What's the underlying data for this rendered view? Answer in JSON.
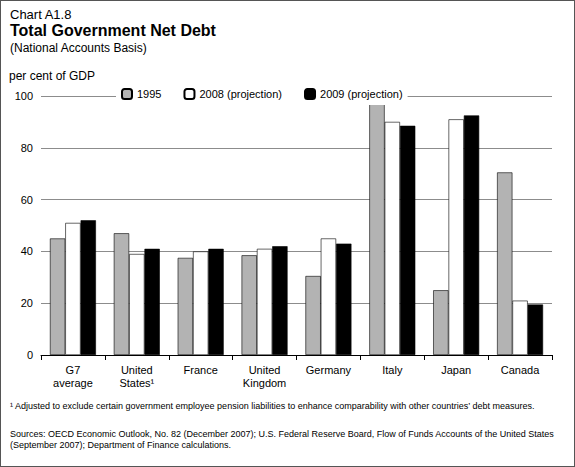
{
  "chart_data": {
    "type": "bar",
    "title": "Total Government Net Debt",
    "chart_number": "Chart A1.8",
    "subtitle": "(National Accounts Basis)",
    "y_label": "per cent of GDP",
    "categories": [
      "G7\naverage",
      "United\nStates¹",
      "France",
      "United\nKingdom",
      "Germany",
      "Italy",
      "Japan",
      "Canada"
    ],
    "series": [
      {
        "name": "1995",
        "color": "#b3b3b3",
        "values": [
          45,
          47,
          37.5,
          38.5,
          30.5,
          98.5,
          25,
          70.5
        ]
      },
      {
        "name": "2008 (projection)",
        "color": "#ffffff",
        "values": [
          51,
          39,
          40,
          41,
          45,
          90,
          91,
          21
        ]
      },
      {
        "name": "2009 (projection)",
        "color": "#000000",
        "values": [
          52,
          41,
          41,
          42,
          43,
          88.5,
          92.5,
          19.5
        ]
      }
    ],
    "ylim": [
      0,
      100
    ],
    "yticks": [
      0,
      20,
      40,
      60,
      80,
      100
    ],
    "grid": true,
    "legend": "top",
    "footnote": "¹ Adjusted to exclude certain government employee pension liabilities to enhance comparability with other countries’ debt measures.",
    "source": "Sources: OECD Economic Outlook, No. 82 (December 2007); U.S. Federal Reserve Board, Flow of Funds Accounts of the United States (September 2007); Department of Finance calculations."
  }
}
